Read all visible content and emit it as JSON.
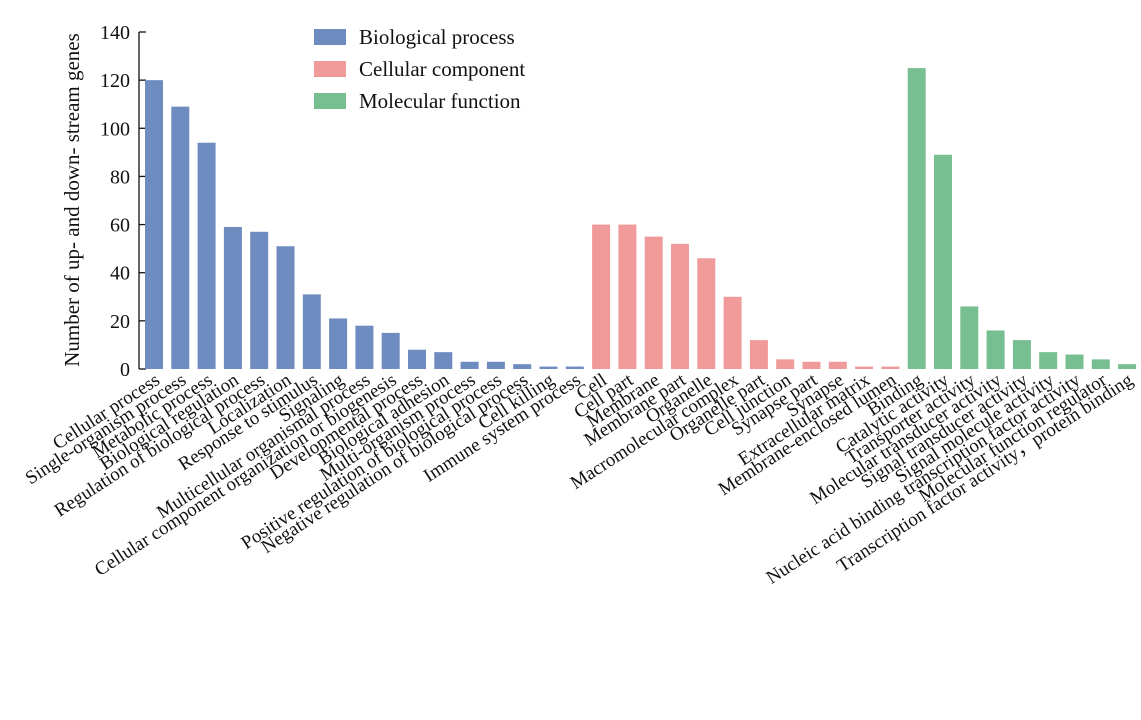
{
  "chart_data": {
    "type": "bar",
    "title": "",
    "xlabel": "",
    "ylabel": "Number of up- and down- stream genes",
    "ylim": [
      0,
      140
    ],
    "yticks": [
      0,
      20,
      40,
      60,
      80,
      100,
      120,
      140
    ],
    "grid": false,
    "legend_position": "top-center",
    "series": [
      {
        "name": "Biological process",
        "color": "#6f8cc0",
        "categories": [
          "Cellular process",
          "Single-organism process",
          "Metabolic process",
          "Biological regulation",
          "Regulation of biological process",
          "Localization",
          "Response to stimulus",
          "Signaling",
          "Multicellular organismal process",
          "Cellular component organization or biogenesis",
          "Developmental process",
          "Biological adhesion",
          "Multi-organism process",
          "Positive regulation of biological process",
          "Negative regulation of biological process",
          "Cell killing",
          "Immune system process"
        ],
        "values": [
          120,
          109,
          94,
          59,
          57,
          51,
          31,
          21,
          18,
          15,
          8,
          7,
          3,
          3,
          2,
          1,
          1
        ]
      },
      {
        "name": "Cellular component",
        "color": "#f09a99",
        "categories": [
          "Cell",
          "Cell part",
          "Membrane",
          "Membrane part",
          "Organelle",
          "Macromolecular complex",
          "Organelle part",
          "Cell junction",
          "Synapse part",
          "Synapse",
          "Extracellular matrix",
          "Membrane-enclosed lumen"
        ],
        "values": [
          60,
          60,
          55,
          52,
          46,
          30,
          12,
          4,
          3,
          3,
          1,
          1
        ]
      },
      {
        "name": "Molecular function",
        "color": "#77be90",
        "categories": [
          "Binding",
          "Catalytic activity",
          "Transporter activity",
          "Molecular transducer activity",
          "Signal transducer activity",
          "Signal molecule activity",
          "Nucleic acid binding transcription factor activity",
          "Molecular function regulator",
          "Transcription factor activity，protein binding"
        ],
        "values": [
          125,
          89,
          26,
          16,
          12,
          7,
          6,
          4,
          2
        ]
      }
    ]
  }
}
